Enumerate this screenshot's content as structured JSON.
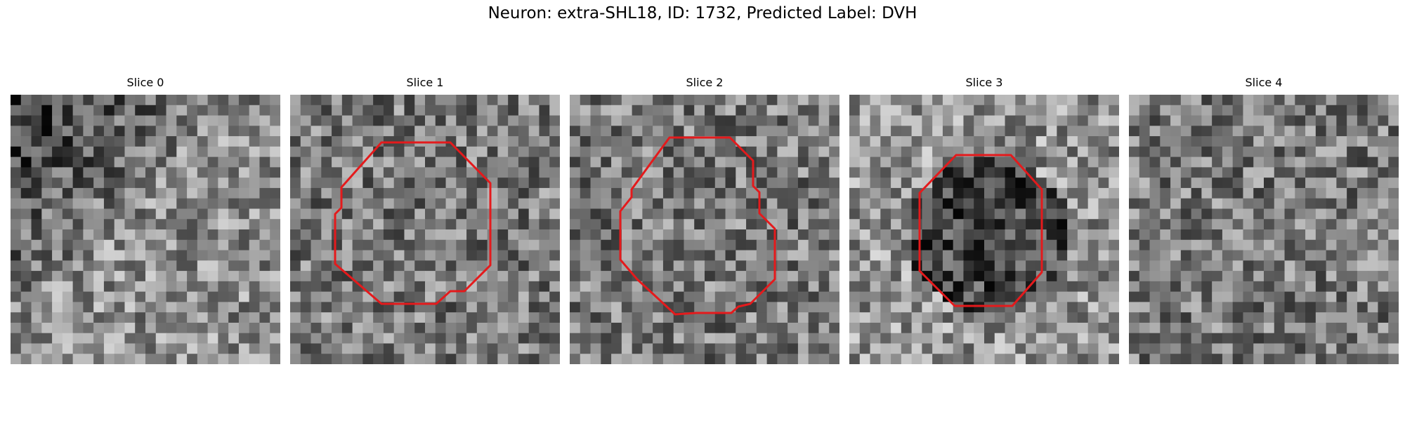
{
  "figure": {
    "title": "Neuron: extra-SHL18, ID: 1732, Predicted Label: DVH"
  },
  "panels": [
    {
      "title": "Slice 0",
      "has_outline": false,
      "seed": 11,
      "darkness": "upper-left"
    },
    {
      "title": "Slice 1",
      "has_outline": true,
      "seed": 23,
      "darkness": "noise"
    },
    {
      "title": "Slice 2",
      "has_outline": true,
      "seed": 37,
      "darkness": "noise"
    },
    {
      "title": "Slice 3",
      "has_outline": true,
      "seed": 41,
      "darkness": "center"
    },
    {
      "title": "Slice 4",
      "has_outline": false,
      "seed": 53,
      "darkness": "noise"
    }
  ],
  "colors": {
    "outline": "#e41a1c",
    "background": "#ffffff"
  },
  "image": {
    "grid": 26,
    "colormap": "gray"
  }
}
